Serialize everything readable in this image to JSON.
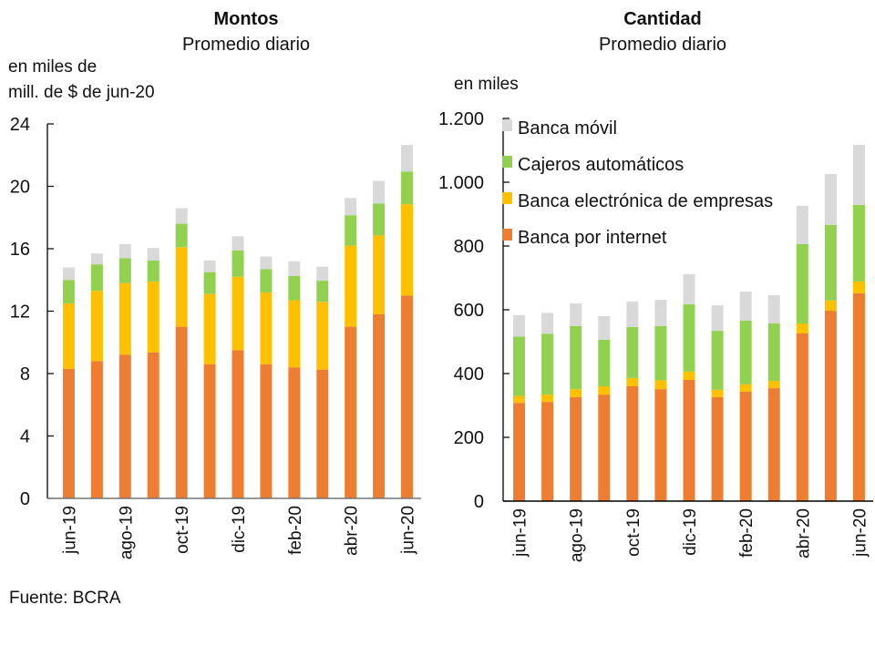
{
  "source": "Fuente: BCRA",
  "colors": {
    "Banca por internet": "#ed7d31",
    "Banca electrónica de empresas": "#ffc000",
    "Cajeros automáticos": "#92d050",
    "Banca móvil": "#d9d9d9"
  },
  "chart_data": [
    {
      "type": "bar",
      "stacked": true,
      "title": "Montos",
      "subtitle": "Promedio diario",
      "ylabel": "en miles de mill. de $ de jun-20",
      "ylabel_lines": [
        "en miles de",
        "mill. de $ de jun-20"
      ],
      "xlabel": "",
      "ylim": [
        0,
        24
      ],
      "yticks": [
        0,
        4,
        8,
        12,
        16,
        20,
        24
      ],
      "ytick_labels": [
        "0",
        "4",
        "8",
        "12",
        "16",
        "20",
        "24"
      ],
      "categories": [
        "jun-19",
        "jul-19",
        "ago-19",
        "sep-19",
        "oct-19",
        "nov-19",
        "dic-19",
        "ene-20",
        "feb-20",
        "mar-20",
        "abr-20",
        "may-20",
        "jun-20"
      ],
      "xtick_labels": [
        "jun-19",
        "",
        "ago-19",
        "",
        "oct-19",
        "",
        "dic-19",
        "",
        "feb-20",
        "",
        "abr-20",
        "",
        "jun-20"
      ],
      "grid": false,
      "legend": "none",
      "series": [
        {
          "name": "Banca por internet",
          "values": [
            8.3,
            8.8,
            9.2,
            9.35,
            11.0,
            8.6,
            9.5,
            8.6,
            8.4,
            8.25,
            11.0,
            11.8,
            13.0
          ]
        },
        {
          "name": "Banca electrónica de empresas",
          "values": [
            4.2,
            4.5,
            4.6,
            4.55,
            5.1,
            4.5,
            4.7,
            4.6,
            4.3,
            4.35,
            5.2,
            5.05,
            5.85
          ]
        },
        {
          "name": "Cajeros automáticos",
          "values": [
            1.5,
            1.7,
            1.6,
            1.35,
            1.5,
            1.4,
            1.7,
            1.5,
            1.55,
            1.35,
            1.95,
            2.05,
            2.1
          ]
        },
        {
          "name": "Banca móvil",
          "values": [
            0.8,
            0.7,
            0.9,
            0.8,
            1.0,
            0.75,
            0.9,
            0.8,
            0.95,
            0.9,
            1.1,
            1.45,
            1.7
          ]
        }
      ]
    },
    {
      "type": "bar",
      "stacked": true,
      "title": "Cantidad",
      "subtitle": "Promedio diario",
      "ylabel": "en miles",
      "xlabel": "",
      "ylim": [
        0,
        1200
      ],
      "yticks": [
        0,
        200,
        400,
        600,
        800,
        1000,
        1200
      ],
      "ytick_labels": [
        "0",
        "200",
        "400",
        "600",
        "800",
        "1.000",
        "1.200"
      ],
      "categories": [
        "jun-19",
        "jul-19",
        "ago-19",
        "sep-19",
        "oct-19",
        "nov-19",
        "dic-19",
        "ene-20",
        "feb-20",
        "mar-20",
        "abr-20",
        "may-20",
        "jun-20"
      ],
      "xtick_labels": [
        "jun-19",
        "",
        "ago-19",
        "",
        "oct-19",
        "",
        "dic-19",
        "",
        "feb-20",
        "",
        "abr-20",
        "",
        "jun-20"
      ],
      "grid": false,
      "legend": "top-left",
      "legend_entries": [
        "Banca móvil",
        "Cajeros automáticos",
        "Banca electrónica de empresas",
        "Banca por internet"
      ],
      "series": [
        {
          "name": "Banca por internet",
          "values": [
            308,
            311,
            326,
            334,
            360,
            351,
            380,
            326,
            343,
            354,
            526,
            597,
            652
          ]
        },
        {
          "name": "Banca electrónica de empresas",
          "values": [
            22,
            23,
            25,
            26,
            26,
            28,
            26,
            23,
            23,
            23,
            31,
            32,
            37
          ]
        },
        {
          "name": "Cajeros automáticos",
          "values": [
            186,
            191,
            198,
            146,
            160,
            170,
            211,
            185,
            200,
            180,
            249,
            237,
            240
          ]
        },
        {
          "name": "Banca móvil",
          "values": [
            67,
            65,
            71,
            74,
            80,
            82,
            94,
            80,
            91,
            89,
            120,
            160,
            188
          ]
        }
      ]
    }
  ]
}
